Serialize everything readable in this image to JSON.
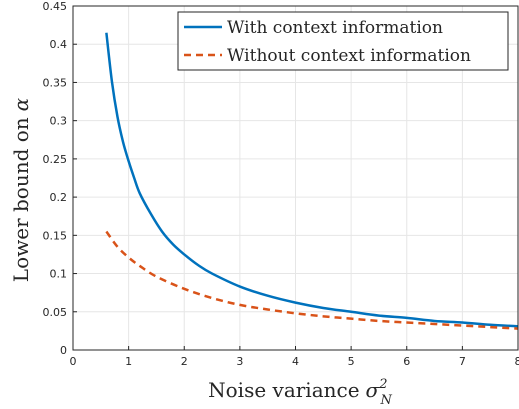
{
  "chart_data": {
    "type": "line",
    "xlabel": "Noise variance",
    "xlabel_math": "σ",
    "xlabel_sup": "2",
    "xlabel_sub": "N",
    "ylabel": "Lower bound on",
    "ylabel_math": "α",
    "xlim": [
      0,
      8
    ],
    "ylim": [
      0,
      0.45
    ],
    "x_ticks": [
      "0",
      "1",
      "2",
      "3",
      "4",
      "5",
      "6",
      "7",
      "8"
    ],
    "y_ticks": [
      "0",
      "0.05",
      "0.1",
      "0.15",
      "0.2",
      "0.25",
      "0.3",
      "0.35",
      "0.4",
      "0.45"
    ],
    "grid": true,
    "legend_position": "top-right",
    "series": [
      {
        "name": "With context information",
        "style": "solid",
        "color": "#0072BD",
        "x": [
          0.6,
          0.7,
          0.8,
          0.9,
          1.0,
          1.1,
          1.2,
          1.4,
          1.6,
          1.8,
          2.0,
          2.25,
          2.5,
          3.0,
          3.5,
          4.0,
          4.5,
          5.0,
          5.5,
          6.0,
          6.5,
          7.0,
          7.5,
          8.0
        ],
        "y": [
          0.415,
          0.351,
          0.305,
          0.272,
          0.247,
          0.225,
          0.205,
          0.178,
          0.155,
          0.138,
          0.125,
          0.111,
          0.1,
          0.083,
          0.071,
          0.062,
          0.055,
          0.05,
          0.045,
          0.042,
          0.038,
          0.036,
          0.033,
          0.031
        ]
      },
      {
        "name": "Without context information",
        "style": "dashed",
        "color": "#D95319",
        "x": [
          0.6,
          0.8,
          1.0,
          1.2,
          1.5,
          2.0,
          2.5,
          3.0,
          3.5,
          4.0,
          4.5,
          5.0,
          5.5,
          6.0,
          6.5,
          7.0,
          7.5,
          8.0
        ],
        "y": [
          0.155,
          0.135,
          0.121,
          0.11,
          0.096,
          0.08,
          0.068,
          0.059,
          0.053,
          0.048,
          0.044,
          0.041,
          0.038,
          0.036,
          0.034,
          0.032,
          0.03,
          0.028
        ]
      }
    ]
  }
}
